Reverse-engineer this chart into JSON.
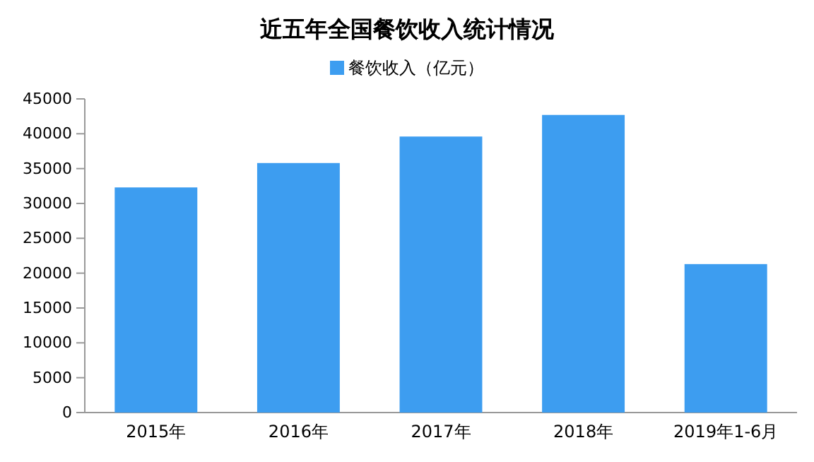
{
  "chart_data": {
    "type": "bar",
    "title": "近五年全国餐饮收入统计情况",
    "categories": [
      "2015年",
      "2016年",
      "2017年",
      "2018年",
      "2019年1-6月"
    ],
    "series": [
      {
        "name": "餐饮收入（亿元）",
        "color": "#3d9df0",
        "values": [
          32300,
          35800,
          39600,
          42700,
          21300
        ]
      }
    ],
    "ylim": [
      0,
      45000
    ],
    "yticks": [
      0,
      5000,
      10000,
      15000,
      20000,
      25000,
      30000,
      35000,
      40000,
      45000
    ],
    "grid": false,
    "legend": "top"
  }
}
